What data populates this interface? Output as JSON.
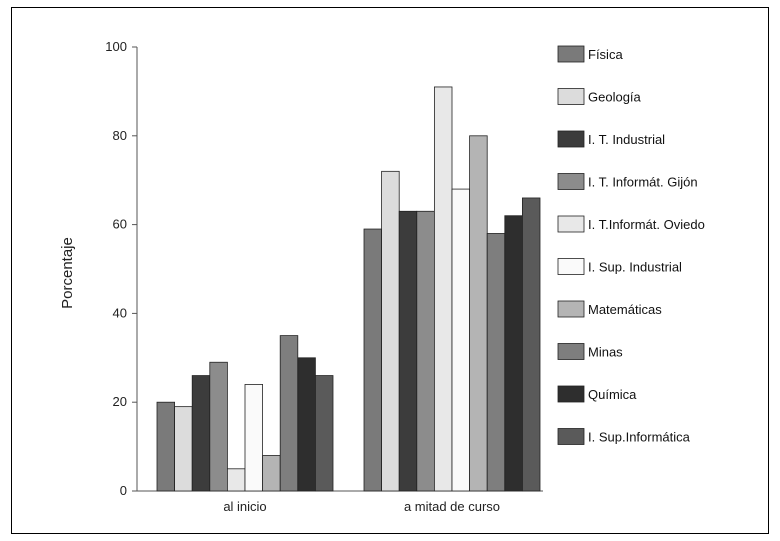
{
  "chart_data": {
    "type": "bar",
    "title": "",
    "xlabel": "",
    "ylabel": "Porcentaje",
    "ylim": [
      0,
      100
    ],
    "yticks": [
      0,
      20,
      40,
      60,
      80,
      100
    ],
    "grid": false,
    "legend_position": "right",
    "categories": [
      "al inicio",
      "a mitad de curso"
    ],
    "series": [
      {
        "name": "Física",
        "color": "#7a7a7a",
        "values": [
          20,
          59
        ]
      },
      {
        "name": "Geología",
        "color": "#dcdcdc",
        "values": [
          19,
          72
        ]
      },
      {
        "name": "I. T. Industrial",
        "color": "#3c3c3c",
        "values": [
          26,
          63
        ]
      },
      {
        "name": "I. T. Informát. Gijón",
        "color": "#8c8c8c",
        "values": [
          29,
          63
        ]
      },
      {
        "name": "I. T.Informát. Oviedo",
        "color": "#e8e8e8",
        "values": [
          5,
          91
        ]
      },
      {
        "name": "I. Sup. Industrial",
        "color": "#fafafa",
        "values": [
          24,
          68
        ]
      },
      {
        "name": "Matemáticas",
        "color": "#b4b4b4",
        "values": [
          8,
          80
        ]
      },
      {
        "name": "Minas",
        "color": "#7e7e7e",
        "values": [
          35,
          58
        ]
      },
      {
        "name": "Química",
        "color": "#2e2e2e",
        "values": [
          30,
          62
        ]
      },
      {
        "name": "I. Sup.Informática",
        "color": "#5a5a5a",
        "values": [
          26,
          66
        ]
      }
    ]
  }
}
